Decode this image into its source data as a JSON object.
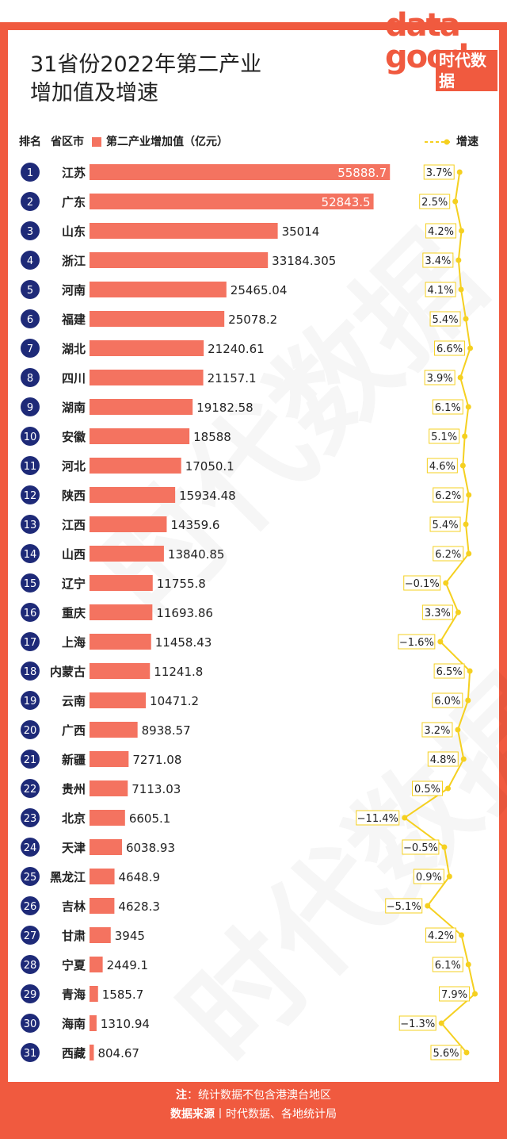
{
  "title": {
    "line1": "31省份2022年第二产业",
    "line2": "增加值及增速"
  },
  "logo": {
    "top": "data",
    "bottom": "good",
    "sub": "时代数据"
  },
  "header": {
    "rank": "排名",
    "province": "省区市",
    "legend_bar": "第二产业增加值（亿元）",
    "legend_line": "增速"
  },
  "colors": {
    "bar": "#f47360",
    "accent": "#f05a3f",
    "rank_circle": "#1e2a78",
    "line": "#f5d020"
  },
  "footer": {
    "note_label": "注",
    "note_text": "：统计数据不包含港澳台地区",
    "source_label": "数据来源",
    "source_sep": "丨",
    "source_text": "时代数据、各地统计局"
  },
  "chart_data": {
    "type": "bar",
    "orientation": "horizontal",
    "secondary": "line",
    "categories": [
      "江苏",
      "广东",
      "山东",
      "浙江",
      "河南",
      "福建",
      "湖北",
      "四川",
      "湖南",
      "安徽",
      "河北",
      "陕西",
      "江西",
      "山西",
      "辽宁",
      "重庆",
      "上海",
      "内蒙古",
      "云南",
      "广西",
      "新疆",
      "贵州",
      "北京",
      "天津",
      "黑龙江",
      "吉林",
      "甘肃",
      "宁夏",
      "青海",
      "海南",
      "西藏"
    ],
    "ranks": [
      1,
      2,
      3,
      4,
      5,
      6,
      7,
      8,
      9,
      10,
      11,
      12,
      13,
      14,
      15,
      16,
      17,
      18,
      19,
      20,
      21,
      22,
      23,
      24,
      25,
      26,
      27,
      28,
      29,
      30,
      31
    ],
    "value_labels": [
      "55888.7",
      "52843.5",
      "35014",
      "33184.305",
      "25465.04",
      "25078.2",
      "21240.61",
      "21157.1",
      "19182.58",
      "18588",
      "17050.1",
      "15934.48",
      "14359.6",
      "13840.85",
      "11755.8",
      "11693.86",
      "11458.43",
      "11241.8",
      "10471.2",
      "8938.57",
      "7271.08",
      "7113.03",
      "6605.1",
      "6038.93",
      "4648.9",
      "4628.3",
      "3945",
      "2449.1",
      "1585.7",
      "1310.94",
      "804.67"
    ],
    "series": [
      {
        "name": "第二产业增加值（亿元）",
        "values": [
          55888.7,
          52843.5,
          35014,
          33184.305,
          25465.04,
          25078.2,
          21240.61,
          21157.1,
          19182.58,
          18588,
          17050.1,
          15934.48,
          14359.6,
          13840.85,
          11755.8,
          11693.86,
          11458.43,
          11241.8,
          10471.2,
          8938.57,
          7271.08,
          7113.03,
          6605.1,
          6038.93,
          4648.9,
          4628.3,
          3945,
          2449.1,
          1585.7,
          1310.94,
          804.67
        ]
      },
      {
        "name": "增速",
        "values": [
          3.7,
          2.5,
          4.2,
          3.4,
          4.1,
          5.4,
          6.6,
          3.9,
          6.1,
          5.1,
          4.6,
          6.2,
          5.4,
          6.2,
          -0.1,
          3.3,
          -1.6,
          6.5,
          6.0,
          3.2,
          4.8,
          0.5,
          -11.4,
          -0.5,
          0.9,
          -5.1,
          4.2,
          6.1,
          7.9,
          -1.3,
          5.6
        ]
      }
    ],
    "growth_labels": [
      "3.7%",
      "2.5%",
      "4.2%",
      "3.4%",
      "4.1%",
      "5.4%",
      "6.6%",
      "3.9%",
      "6.1%",
      "5.1%",
      "4.6%",
      "6.2%",
      "5.4%",
      "6.2%",
      "−0.1%",
      "3.3%",
      "−1.6%",
      "6.5%",
      "6.0%",
      "3.2%",
      "4.8%",
      "0.5%",
      "−11.4%",
      "−0.5%",
      "0.9%",
      "−5.1%",
      "4.2%",
      "6.1%",
      "7.9%",
      "−1.3%",
      "5.6%"
    ]
  }
}
